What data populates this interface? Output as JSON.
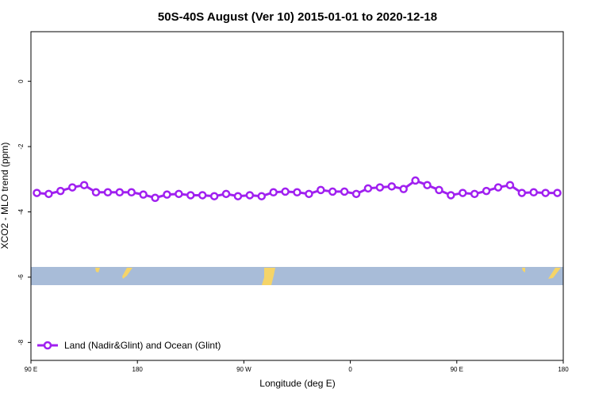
{
  "chart_data": {
    "type": "line",
    "title": "50S-40S August (Ver 10)   2015-01-01 to 2020-12-18",
    "x_label": "Longitude (deg E)",
    "y_label": "XCO2 - MLO trend (ppm)",
    "xlim": [
      90,
      540
    ],
    "ylim": [
      -8.55,
      1.52
    ],
    "xticks": [
      {
        "value": 90,
        "label": "90 E"
      },
      180,
      {
        "value": 270,
        "label": "90 W"
      },
      {
        "value": 360,
        "label": "0"
      },
      {
        "value": 450,
        "label": "90 E"
      },
      {
        "value": 540,
        "label": "180"
      }
    ],
    "yticks": [
      0,
      -2,
      -4,
      -6,
      -8
    ],
    "legend": "bottom-left",
    "series": [
      {
        "name": "Land (Nadir&Glint) and Ocean (Glint)",
        "color": "#a020f0",
        "x": [
          95,
          105,
          115,
          125,
          135,
          145,
          155,
          165,
          175,
          185,
          195,
          205,
          215,
          225,
          235,
          245,
          255,
          265,
          275,
          285,
          295,
          305,
          315,
          325,
          335,
          345,
          355,
          365,
          375,
          385,
          395,
          405,
          415,
          425,
          435,
          445,
          455,
          465,
          475,
          485,
          495,
          505,
          515,
          525,
          535
        ],
        "values": [
          -3.42,
          -3.45,
          -3.36,
          -3.25,
          -3.18,
          -3.4,
          -3.4,
          -3.4,
          -3.4,
          -3.47,
          -3.57,
          -3.47,
          -3.45,
          -3.49,
          -3.49,
          -3.52,
          -3.45,
          -3.52,
          -3.49,
          -3.52,
          -3.4,
          -3.38,
          -3.4,
          -3.45,
          -3.33,
          -3.38,
          -3.38,
          -3.45,
          -3.28,
          -3.25,
          -3.22,
          -3.3,
          -3.04,
          -3.18,
          -3.33,
          -3.49,
          -3.42,
          -3.45,
          -3.36,
          -3.25,
          -3.18,
          -3.42,
          -3.4,
          -3.42,
          -3.42
        ]
      }
    ]
  }
}
